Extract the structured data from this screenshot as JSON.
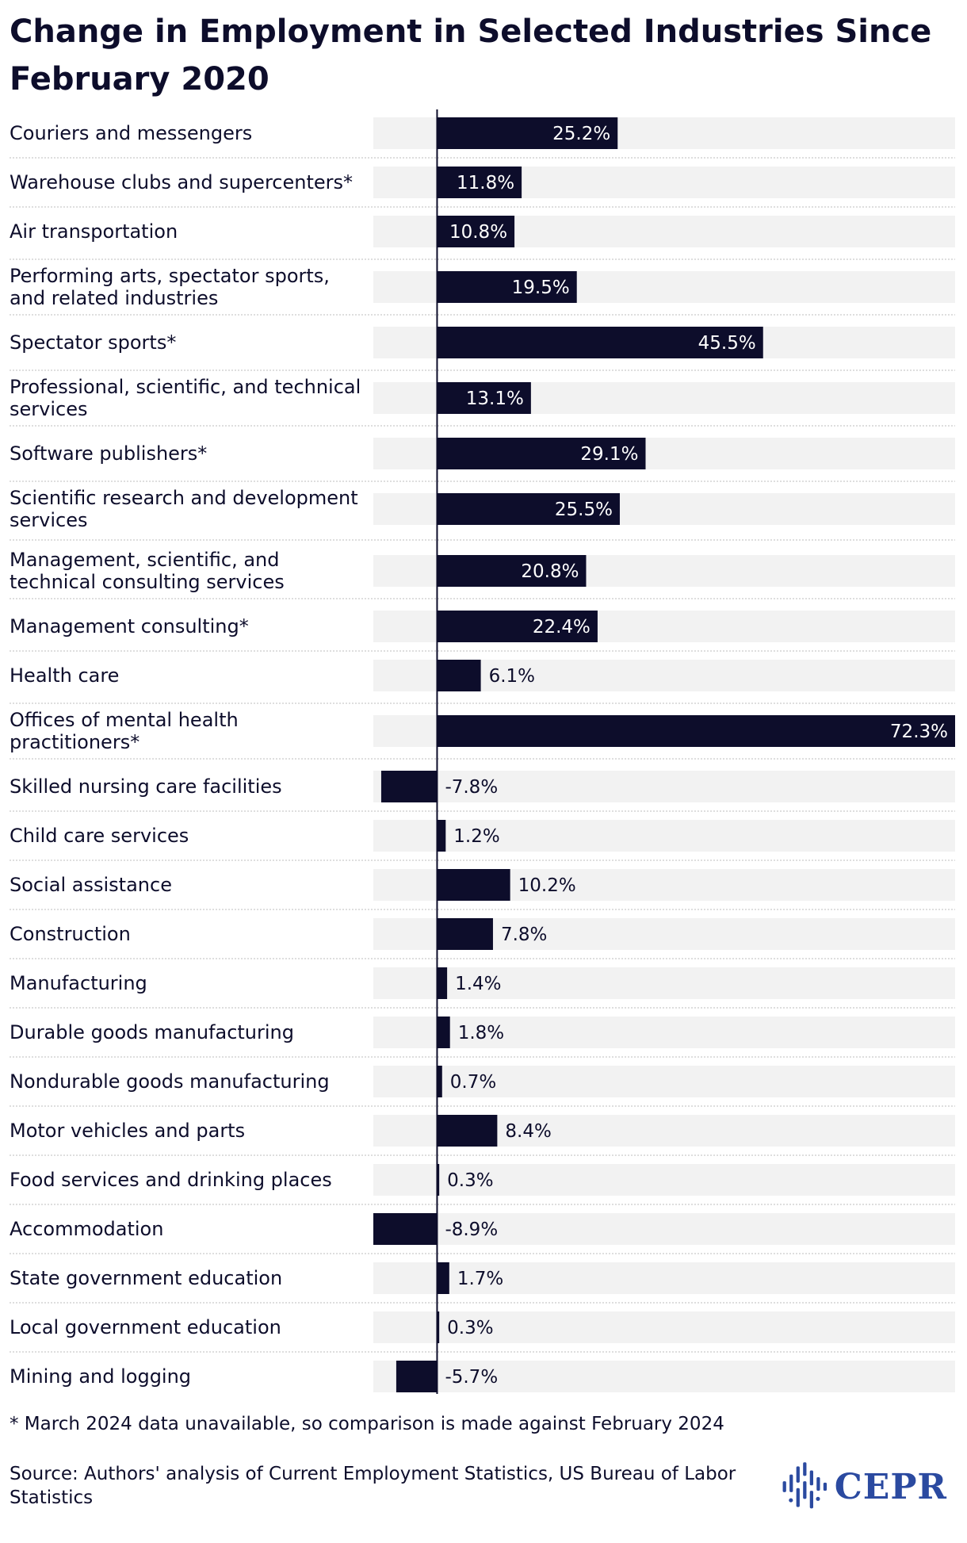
{
  "chart_data": {
    "type": "bar",
    "orientation": "horizontal",
    "title": "Change in Employment in Selected Industries Since February 2020",
    "categories": [
      "Couriers and messengers",
      "Warehouse clubs and supercenters*",
      "Air transportation",
      "Performing arts, spectator sports, and related industries",
      "Spectator sports*",
      "Professional, scientific, and technical services",
      "Software publishers*",
      "Scientific research and development services",
      "Management, scientific, and technical consulting services",
      "Management consulting*",
      "Health care",
      "Offices of mental health practitioners*",
      "Skilled nursing care facilities",
      "Child care services",
      "Social assistance",
      "Construction",
      "Manufacturing",
      "Durable goods manufacturing",
      "Nondurable goods manufacturing",
      "Motor vehicles and parts",
      "Food services and drinking places",
      "Accommodation",
      "State government education",
      "Local government education",
      "Mining and logging"
    ],
    "values": [
      25.2,
      11.8,
      10.8,
      19.5,
      45.5,
      13.1,
      29.1,
      25.5,
      20.8,
      22.4,
      6.1,
      72.3,
      -7.8,
      1.2,
      10.2,
      7.8,
      1.4,
      1.8,
      0.7,
      8.4,
      0.3,
      -8.9,
      1.7,
      0.3,
      -5.7
    ],
    "value_labels": [
      "25.2%",
      "11.8%",
      "10.8%",
      "19.5%",
      "45.5%",
      "13.1%",
      "29.1%",
      "25.5%",
      "20.8%",
      "22.4%",
      "6.1%",
      "72.3%",
      "-7.8%",
      "1.2%",
      "10.2%",
      "7.8%",
      "1.4%",
      "1.8%",
      "0.7%",
      "8.4%",
      "0.3%",
      "-8.9%",
      "1.7%",
      "0.3%",
      "-5.7%"
    ],
    "xlim": [
      -8.9,
      72.3
    ],
    "xlabel": "",
    "ylabel": "",
    "grid": false,
    "legend": "none",
    "colors": {
      "bar": "#0d0d2b",
      "row_background": "#f2f2f2",
      "text_dark": "#0d0d2b",
      "text_light": "#ffffff",
      "separator": "#d4d4d4",
      "axis": "#0d0d2b"
    }
  },
  "footnote": "* March 2024 data unavailable, so comparison is made against February 2024",
  "source": "Source: Authors' analysis of Current Employment Statistics, US Bureau of Labor Statistics",
  "logo": {
    "text": "CEPR",
    "icon": "cepr-logo-icon",
    "color": "#2b4aa0"
  }
}
